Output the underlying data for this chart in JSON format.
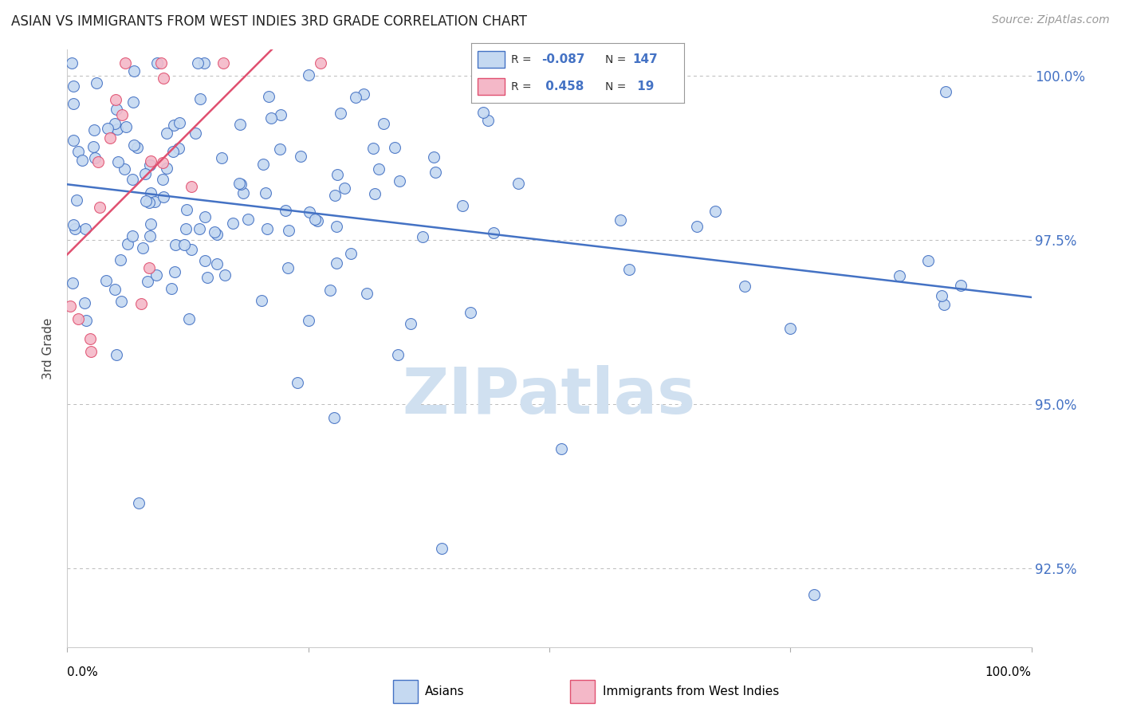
{
  "title": "ASIAN VS IMMIGRANTS FROM WEST INDIES 3RD GRADE CORRELATION CHART",
  "source": "Source: ZipAtlas.com",
  "ylabel": "3rd Grade",
  "xlim": [
    0.0,
    1.0
  ],
  "ylim": [
    0.913,
    1.004
  ],
  "yticks": [
    0.925,
    0.95,
    0.975,
    1.0
  ],
  "ytick_labels": [
    "92.5%",
    "95.0%",
    "97.5%",
    "100.0%"
  ],
  "r_asian": -0.087,
  "n_asian": 147,
  "r_westindies": 0.458,
  "n_westindies": 19,
  "legend_label_asian": "Asians",
  "legend_label_wi": "Immigrants from West Indies",
  "color_asian_fill": "#c5d9f1",
  "color_asian_edge": "#4472c4",
  "color_wi_fill": "#f4b8c8",
  "color_wi_edge": "#e05070",
  "color_asian_line": "#4472c4",
  "color_wi_line": "#e05070",
  "dot_size": 100,
  "background_color": "#ffffff",
  "grid_color": "#bbbbbb",
  "watermark_color": "#d0e0f0",
  "title_color": "#222222",
  "source_color": "#999999",
  "ylabel_color": "#444444",
  "ytick_color": "#4472c4"
}
